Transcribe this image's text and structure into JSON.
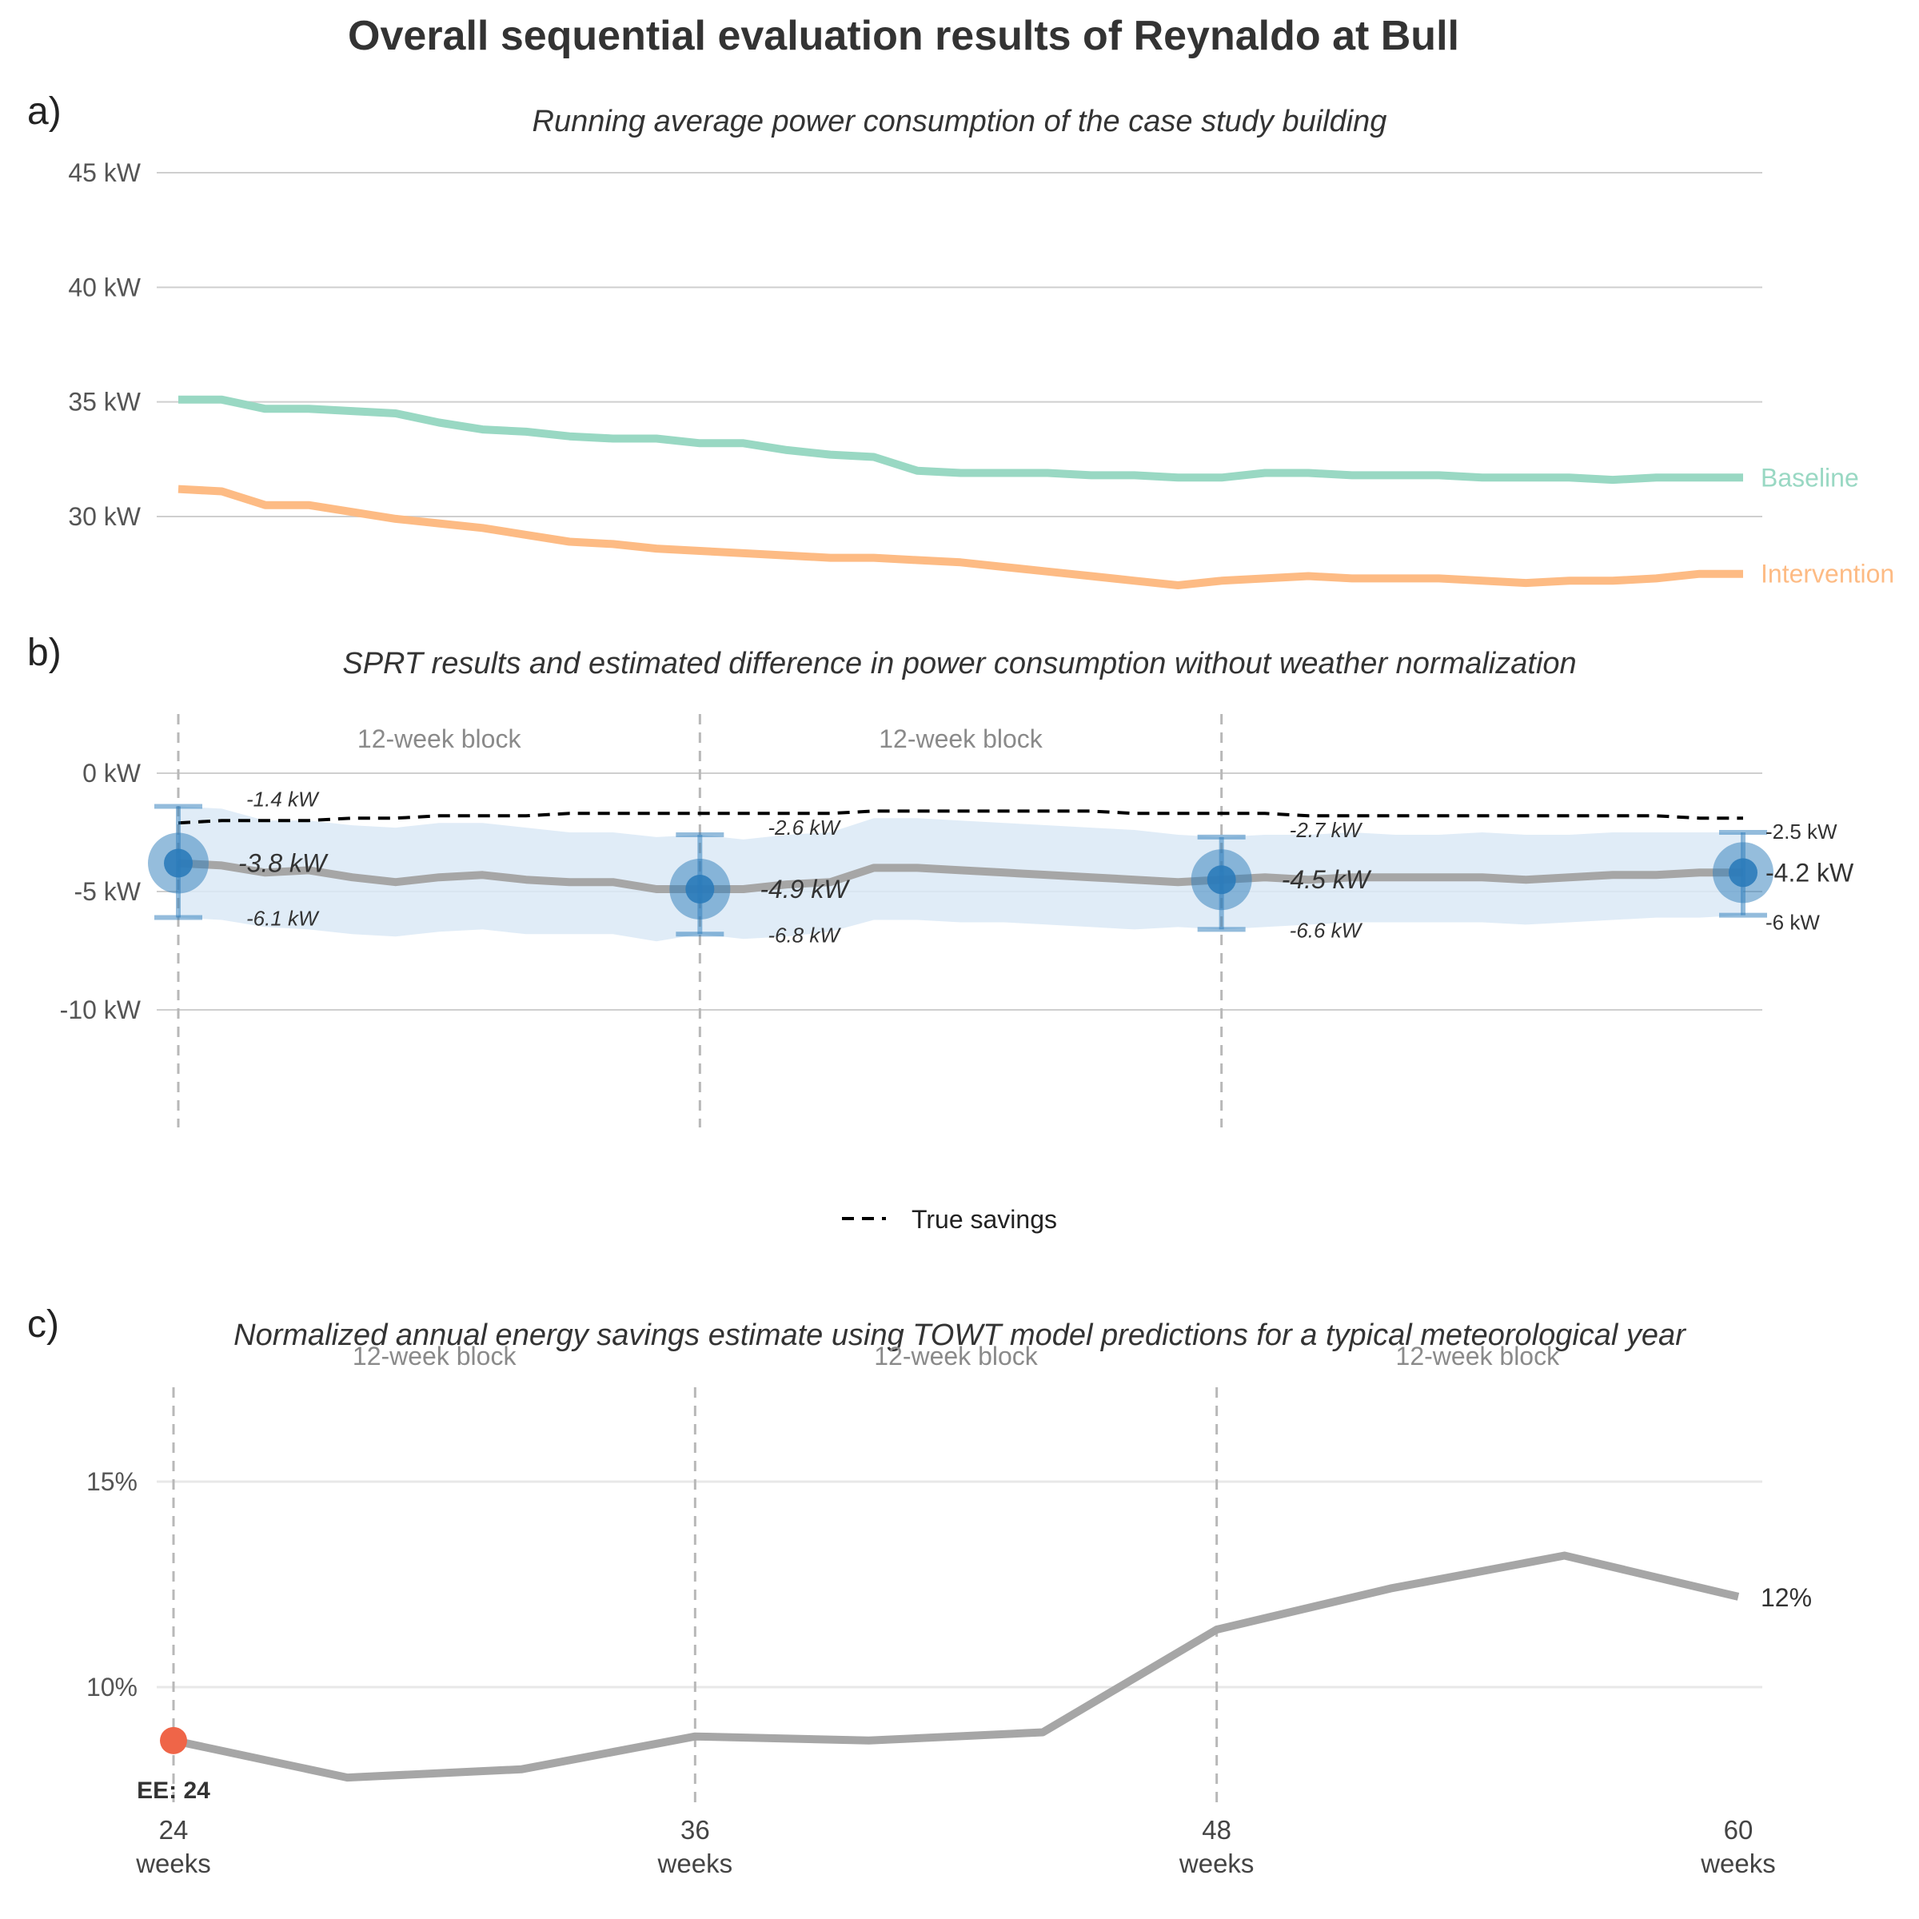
{
  "figure": {
    "title": "Overall sequential evaluation results of Reynaldo at Bull"
  },
  "colors": {
    "baseline": "#99d8c3",
    "intervention": "#fdbb84",
    "estimate_line": "#a6a6a6",
    "ci_band": "#dbe9f6",
    "point": "#2b7bba",
    "true_savings": "#000000",
    "ee_marker": "#ef6548"
  },
  "chart_data": [
    {
      "panel": "a)",
      "type": "line",
      "title": "Running average power consumption of the case study building",
      "xlabel": "",
      "ylabel": "",
      "x": [
        24,
        25,
        26,
        27,
        28,
        29,
        30,
        31,
        32,
        33,
        34,
        35,
        36,
        37,
        38,
        39,
        40,
        41,
        42,
        43,
        44,
        45,
        46,
        47,
        48,
        49,
        50,
        51,
        52,
        53,
        54,
        55,
        56,
        57,
        58,
        59,
        60
      ],
      "ylim": [
        26,
        46
      ],
      "yticks": [
        30,
        35,
        40,
        45
      ],
      "ytick_labels": [
        "30 kW",
        "35 kW",
        "40 kW",
        "45 kW"
      ],
      "grid": true,
      "series": [
        {
          "name": "Baseline",
          "values": [
            35.1,
            35.1,
            34.7,
            34.7,
            34.6,
            34.5,
            34.1,
            33.8,
            33.7,
            33.5,
            33.4,
            33.4,
            33.2,
            33.2,
            32.9,
            32.7,
            32.6,
            32.0,
            31.9,
            31.9,
            31.9,
            31.8,
            31.8,
            31.7,
            31.7,
            31.9,
            31.9,
            31.8,
            31.8,
            31.8,
            31.7,
            31.7,
            31.7,
            31.6,
            31.7,
            31.7,
            31.7
          ],
          "end_label": "Baseline"
        },
        {
          "name": "Intervention",
          "values": [
            31.2,
            31.1,
            30.5,
            30.5,
            30.2,
            29.9,
            29.7,
            29.5,
            29.2,
            28.9,
            28.8,
            28.6,
            28.5,
            28.4,
            28.3,
            28.2,
            28.2,
            28.1,
            28.0,
            27.8,
            27.6,
            27.4,
            27.2,
            27.0,
            27.2,
            27.3,
            27.4,
            27.3,
            27.3,
            27.3,
            27.2,
            27.1,
            27.2,
            27.2,
            27.3,
            27.5,
            27.5
          ],
          "end_label": "Intervention"
        }
      ]
    },
    {
      "panel": "b)",
      "type": "line",
      "title": "SPRT results and estimated difference in power consumption without weather normalization",
      "xlabel": "",
      "ylabel": "",
      "x": [
        24,
        25,
        26,
        27,
        28,
        29,
        30,
        31,
        32,
        33,
        34,
        35,
        36,
        37,
        38,
        39,
        40,
        41,
        42,
        43,
        44,
        45,
        46,
        47,
        48,
        49,
        50,
        51,
        52,
        53,
        54,
        55,
        56,
        57,
        58,
        59,
        60
      ],
      "ylim": [
        -15,
        2.5
      ],
      "yticks": [
        0,
        -5,
        -10
      ],
      "ytick_labels": [
        "0 kW",
        "-5 kW",
        "-10 kW"
      ],
      "grid": true,
      "block_lines_x": [
        24,
        36,
        48
      ],
      "block_labels": [
        {
          "text": "12-week block",
          "x": 30
        },
        {
          "text": "12-week block",
          "x": 42
        }
      ],
      "estimate": [
        -3.8,
        -3.9,
        -4.2,
        -4.1,
        -4.4,
        -4.6,
        -4.4,
        -4.3,
        -4.5,
        -4.6,
        -4.6,
        -4.9,
        -4.9,
        -4.9,
        -4.7,
        -4.6,
        -4.0,
        -4.0,
        -4.1,
        -4.2,
        -4.3,
        -4.4,
        -4.5,
        -4.6,
        -4.5,
        -4.4,
        -4.5,
        -4.4,
        -4.4,
        -4.4,
        -4.4,
        -4.5,
        -4.4,
        -4.3,
        -4.3,
        -4.2,
        -4.2
      ],
      "ci_upper": [
        -1.4,
        -1.5,
        -2.0,
        -2.0,
        -2.2,
        -2.3,
        -2.1,
        -2.1,
        -2.3,
        -2.5,
        -2.5,
        -2.7,
        -2.6,
        -2.8,
        -2.6,
        -2.5,
        -1.9,
        -1.9,
        -2.0,
        -2.1,
        -2.2,
        -2.3,
        -2.4,
        -2.6,
        -2.7,
        -2.6,
        -2.6,
        -2.5,
        -2.6,
        -2.6,
        -2.5,
        -2.6,
        -2.6,
        -2.5,
        -2.5,
        -2.5,
        -2.5
      ],
      "ci_lower": [
        -6.1,
        -6.2,
        -6.5,
        -6.6,
        -6.8,
        -6.9,
        -6.7,
        -6.6,
        -6.8,
        -6.8,
        -6.8,
        -7.1,
        -6.8,
        -7.0,
        -6.9,
        -6.7,
        -6.2,
        -6.2,
        -6.3,
        -6.3,
        -6.4,
        -6.5,
        -6.6,
        -6.5,
        -6.6,
        -6.5,
        -6.4,
        -6.3,
        -6.3,
        -6.3,
        -6.3,
        -6.4,
        -6.3,
        -6.2,
        -6.1,
        -6.1,
        -6.0
      ],
      "true_savings": [
        -2.1,
        -2.0,
        -2.0,
        -2.0,
        -1.9,
        -1.9,
        -1.8,
        -1.8,
        -1.8,
        -1.7,
        -1.7,
        -1.7,
        -1.7,
        -1.7,
        -1.7,
        -1.7,
        -1.6,
        -1.6,
        -1.6,
        -1.6,
        -1.6,
        -1.6,
        -1.7,
        -1.7,
        -1.7,
        -1.7,
        -1.8,
        -1.8,
        -1.8,
        -1.8,
        -1.8,
        -1.8,
        -1.8,
        -1.8,
        -1.8,
        -1.9,
        -1.9
      ],
      "checkpoints": [
        {
          "x": 24,
          "estimate": -3.8,
          "upper": -1.4,
          "lower": -6.1,
          "estimate_label": "-3.8 kW",
          "upper_label": "-1.4 kW",
          "lower_label": "-6.1 kW"
        },
        {
          "x": 36,
          "estimate": -4.9,
          "upper": -2.6,
          "lower": -6.8,
          "estimate_label": "-4.9 kW",
          "upper_label": "-2.6 kW",
          "lower_label": "-6.8 kW"
        },
        {
          "x": 48,
          "estimate": -4.5,
          "upper": -2.7,
          "lower": -6.6,
          "estimate_label": "-4.5 kW",
          "upper_label": "-2.7 kW",
          "lower_label": "-6.6 kW"
        },
        {
          "x": 60,
          "estimate": -4.2,
          "upper": -2.5,
          "lower": -6.0,
          "estimate_label": "-4.2 kW",
          "upper_label": "-2.5 kW",
          "lower_label": "-6 kW"
        }
      ],
      "legend": {
        "label": "True savings",
        "style": "dashed",
        "placement": "bottom"
      }
    },
    {
      "panel": "c)",
      "type": "line",
      "title": "Normalized annual energy savings estimate using TOWT model predictions for a typical meteorological year",
      "xlabel": "",
      "ylabel": "",
      "x": [
        24,
        28,
        32,
        36,
        40,
        44,
        48,
        52,
        56,
        60
      ],
      "values": [
        8.7,
        7.8,
        8.0,
        8.8,
        8.7,
        8.9,
        11.4,
        12.4,
        13.2,
        12.2
      ],
      "ylim": [
        7.3,
        17.5
      ],
      "yticks": [
        10,
        15
      ],
      "ytick_labels": [
        "10%",
        "15%"
      ],
      "grid": true,
      "block_lines_x": [
        24,
        36,
        48
      ],
      "block_labels": [
        {
          "text": "12-week block",
          "x": 30
        },
        {
          "text": "12-week block",
          "x": 42
        },
        {
          "text": "12-week block",
          "x": 54
        }
      ],
      "end_label": "12%",
      "ee_marker": {
        "x": 24,
        "y": 8.7,
        "label": "EE: 24"
      },
      "xticks": [
        24,
        36,
        48,
        60
      ],
      "xtick_labels": [
        {
          "num": "24",
          "unit": "weeks"
        },
        {
          "num": "36",
          "unit": "weeks"
        },
        {
          "num": "48",
          "unit": "weeks"
        },
        {
          "num": "60",
          "unit": "weeks"
        }
      ]
    }
  ]
}
